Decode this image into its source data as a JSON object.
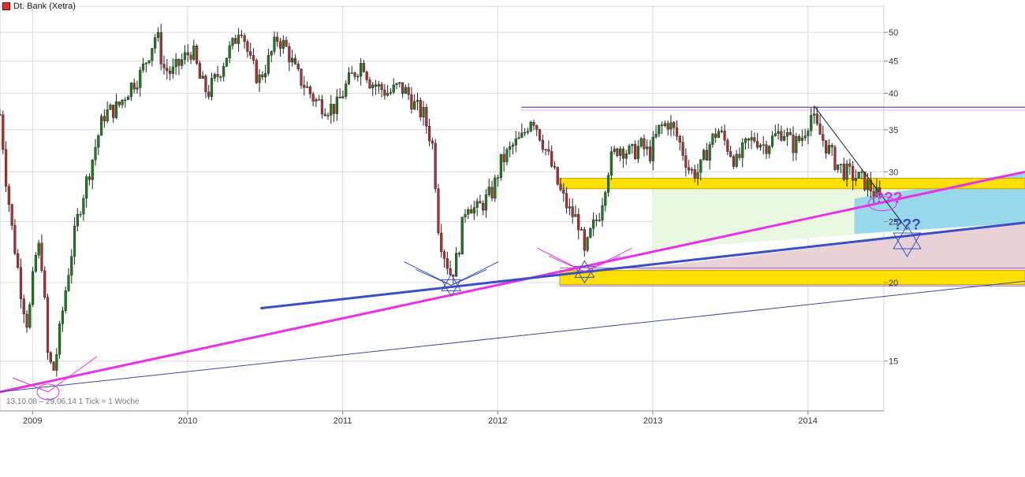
{
  "legend": {
    "label": "Dt. Bank (Xetra)",
    "color": "#e03030"
  },
  "footer": {
    "note": "13.10.08 – 29.06.14   1 Tick = 1 Woche"
  },
  "chart_data": {
    "type": "candlestick",
    "title": "Dt. Bank (Xetra)",
    "period": "13.10.08 – 29.06.14",
    "interval": "1 Tick = 1 Woche",
    "y_scale": "log",
    "ylim": [
      12.5,
      55
    ],
    "y_ticks": [
      15,
      20,
      25,
      30,
      35,
      40,
      45,
      50
    ],
    "x_ticks": [
      {
        "label": "2009",
        "t": 2009.0
      },
      {
        "label": "2010",
        "t": 2010.0
      },
      {
        "label": "2011",
        "t": 2011.0
      },
      {
        "label": "2012",
        "t": 2012.0
      },
      {
        "label": "2013",
        "t": 2013.0
      },
      {
        "label": "2014",
        "t": 2014.0
      }
    ],
    "xlim": [
      2008.79,
      2014.49
    ],
    "grid": true,
    "colors": {
      "up": "#1f7a1f",
      "down": "#a83232",
      "magenta": "#e633e6",
      "blue": "#3a4fc4",
      "gold": "#ffe000"
    },
    "close_path": [
      [
        2008.79,
        37
      ],
      [
        2008.83,
        29
      ],
      [
        2008.87,
        24
      ],
      [
        2008.93,
        19
      ],
      [
        2008.97,
        17
      ],
      [
        2009.02,
        22
      ],
      [
        2009.05,
        23
      ],
      [
        2009.1,
        15
      ],
      [
        2009.14,
        14.5
      ],
      [
        2009.18,
        17
      ],
      [
        2009.22,
        20
      ],
      [
        2009.3,
        26
      ],
      [
        2009.38,
        31
      ],
      [
        2009.46,
        37
      ],
      [
        2009.55,
        38
      ],
      [
        2009.63,
        41
      ],
      [
        2009.7,
        43
      ],
      [
        2009.76,
        47
      ],
      [
        2009.8,
        50
      ],
      [
        2009.84,
        44
      ],
      [
        2009.9,
        43
      ],
      [
        2009.96,
        45
      ],
      [
        2010.03,
        47
      ],
      [
        2010.08,
        42
      ],
      [
        2010.13,
        40
      ],
      [
        2010.2,
        43
      ],
      [
        2010.25,
        46
      ],
      [
        2010.3,
        48
      ],
      [
        2010.34,
        52
      ],
      [
        2010.4,
        45
      ],
      [
        2010.46,
        42
      ],
      [
        2010.52,
        45
      ],
      [
        2010.58,
        49
      ],
      [
        2010.64,
        47
      ],
      [
        2010.7,
        43
      ],
      [
        2010.76,
        41
      ],
      [
        2010.82,
        39
      ],
      [
        2010.9,
        38
      ],
      [
        2010.96,
        38
      ],
      [
        2011.02,
        41
      ],
      [
        2011.07,
        43
      ],
      [
        2011.13,
        45
      ],
      [
        2011.17,
        42
      ],
      [
        2011.22,
        41
      ],
      [
        2011.3,
        40
      ],
      [
        2011.36,
        41
      ],
      [
        2011.42,
        40
      ],
      [
        2011.47,
        38
      ],
      [
        2011.52,
        37
      ],
      [
        2011.58,
        33
      ],
      [
        2011.62,
        24
      ],
      [
        2011.66,
        22
      ],
      [
        2011.7,
        20.5
      ],
      [
        2011.74,
        22
      ],
      [
        2011.8,
        27
      ],
      [
        2011.86,
        26
      ],
      [
        2011.92,
        27
      ],
      [
        2011.97,
        28
      ],
      [
        2012.02,
        31
      ],
      [
        2012.1,
        33
      ],
      [
        2012.16,
        34
      ],
      [
        2012.22,
        37
      ],
      [
        2012.28,
        34
      ],
      [
        2012.34,
        31
      ],
      [
        2012.4,
        28
      ],
      [
        2012.46,
        26
      ],
      [
        2012.52,
        25
      ],
      [
        2012.56,
        22
      ],
      [
        2012.6,
        24
      ],
      [
        2012.66,
        26
      ],
      [
        2012.72,
        31
      ],
      [
        2012.78,
        33
      ],
      [
        2012.86,
        32
      ],
      [
        2012.92,
        33
      ],
      [
        2012.98,
        32
      ],
      [
        2013.04,
        35
      ],
      [
        2013.1,
        36
      ],
      [
        2013.16,
        34
      ],
      [
        2013.24,
        30
      ],
      [
        2013.3,
        30
      ],
      [
        2013.36,
        33
      ],
      [
        2013.42,
        35
      ],
      [
        2013.48,
        33
      ],
      [
        2013.54,
        31
      ],
      [
        2013.6,
        33
      ],
      [
        2013.66,
        34
      ],
      [
        2013.72,
        33
      ],
      [
        2013.78,
        34
      ],
      [
        2013.84,
        35
      ],
      [
        2013.9,
        33
      ],
      [
        2013.96,
        34
      ],
      [
        2014.02,
        37
      ],
      [
        2014.06,
        35
      ],
      [
        2014.12,
        33
      ],
      [
        2014.18,
        31
      ],
      [
        2014.24,
        30
      ],
      [
        2014.3,
        29.5
      ],
      [
        2014.36,
        29
      ],
      [
        2014.42,
        28
      ],
      [
        2014.47,
        27
      ]
    ],
    "annotations": {
      "question_marks": [
        {
          "text": "???",
          "t": 2014.52,
          "y": 26.8,
          "color": "#d633d6"
        },
        {
          "text": "???",
          "t": 2014.64,
          "y": 24.3,
          "color": "#3a4fc4"
        }
      ]
    }
  }
}
